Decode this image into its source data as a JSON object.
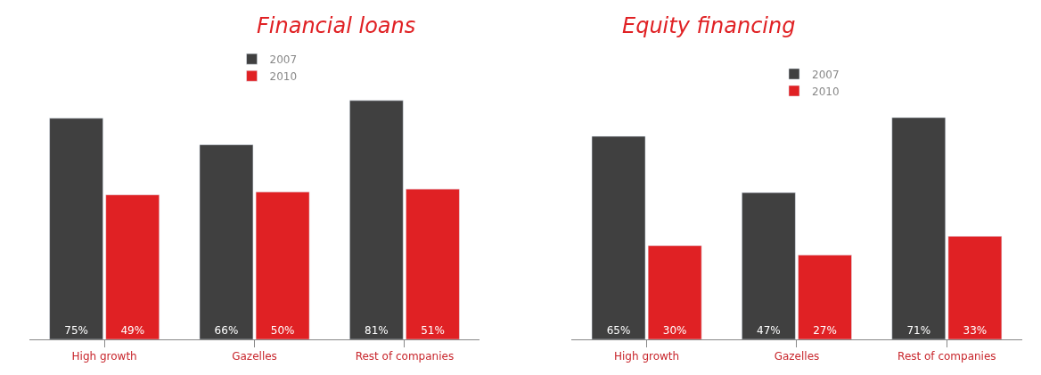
{
  "chart_data": [
    {
      "type": "bar",
      "title": "Financial loans",
      "categories": [
        "High growth",
        "Gazelles",
        "Rest of companies"
      ],
      "legend": "top",
      "data_labels": true,
      "series": [
        {
          "name": "2007",
          "color": "#404040",
          "values": [
            75,
            66,
            81
          ],
          "value_labels": [
            "75%",
            "66%",
            "81%"
          ]
        },
        {
          "name": "2010",
          "color": "#e02124",
          "values": [
            49,
            50,
            51
          ],
          "value_labels": [
            "49%",
            "50%",
            "51%"
          ]
        }
      ]
    },
    {
      "type": "bar",
      "title": "Equity financing",
      "categories": [
        "High growth",
        "Gazelles",
        "Rest of companies"
      ],
      "legend": "top",
      "data_labels": true,
      "series": [
        {
          "name": "2007",
          "color": "#404040",
          "values": [
            65,
            47,
            71
          ],
          "value_labels": [
            "65%",
            "47%",
            "71%"
          ]
        },
        {
          "name": "2010",
          "color": "#e02124",
          "values": [
            30,
            27,
            33
          ],
          "value_labels": [
            "30%",
            "27%",
            "33%"
          ]
        }
      ]
    }
  ]
}
